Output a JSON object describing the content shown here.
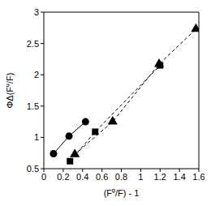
{
  "chart_data": {
    "type": "scatter",
    "xlabel": "(F⁰/F) - 1",
    "ylabel": "ΦΔ(F⁰/F)",
    "xlim": [
      0,
      1.6
    ],
    "xticks": [
      0,
      0.2,
      0.4,
      0.6,
      0.8,
      1,
      1.2,
      1.4,
      1.6
    ],
    "ylim": [
      0.5,
      3
    ],
    "yticks": [
      0.5,
      1,
      1.5,
      2,
      2.5,
      3
    ],
    "grid": false,
    "series": [
      {
        "color": "#000000",
        "marker": "circle",
        "line_style": "solid",
        "x": [
          0.1,
          0.26,
          0.43
        ],
        "values": [
          0.74,
          1.02,
          1.25
        ]
      },
      {
        "color": "#000000",
        "marker": "square",
        "line_style": "dashed",
        "x": [
          0.27,
          0.53,
          1.2
        ],
        "values": [
          0.62,
          1.09,
          2.15
        ]
      },
      {
        "color": "#000000",
        "marker": "triangle",
        "line_style": "dashed",
        "x": [
          0.32,
          0.71,
          1.19,
          1.57
        ],
        "values": [
          0.73,
          1.25,
          2.17,
          2.73
        ]
      }
    ]
  }
}
